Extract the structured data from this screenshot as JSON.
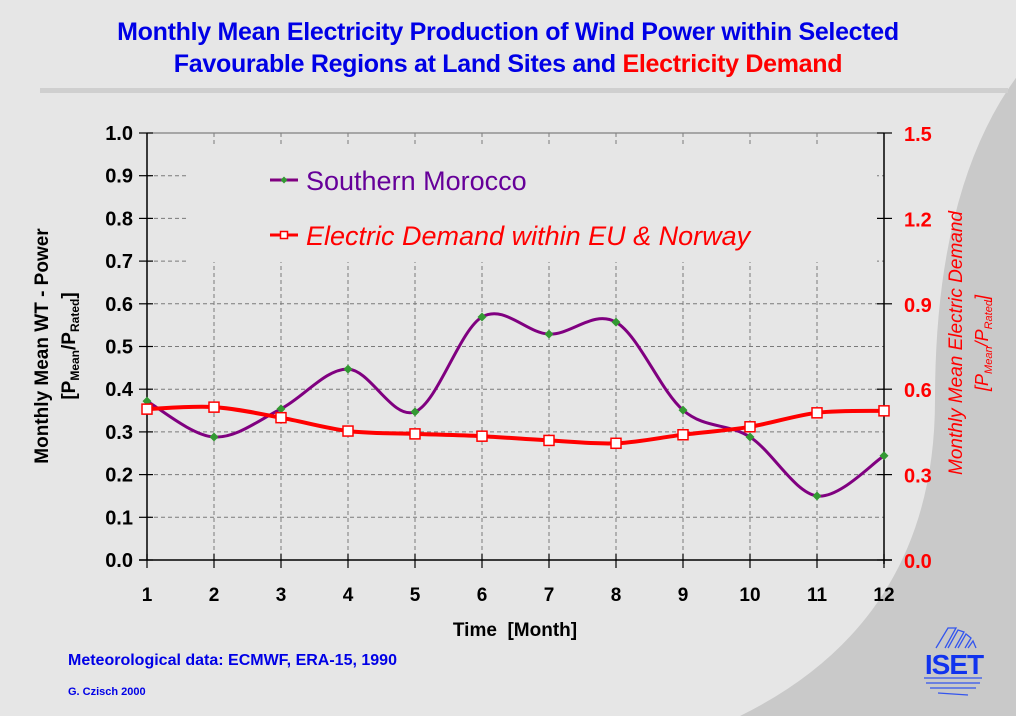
{
  "title": {
    "line1": "Monthly Mean Electricity Production of Wind Power within Selected",
    "line2_blue": "Favourable Regions at Land Sites and ",
    "line2_red": "Electricity Demand"
  },
  "footer": {
    "source": "Meteorological data: ECMWF, ERA-15, 1990",
    "author": "G. Czisch 2000"
  },
  "logo": {
    "text": "ISET"
  },
  "colors": {
    "title_blue": "#0000e6",
    "morocco_line": "#800080",
    "morocco_marker": "#339933",
    "demand_line": "#ff0000",
    "background_light": "#e6e6e6",
    "background_dark": "#c9c9c9"
  },
  "chart_data": {
    "type": "line",
    "xlabel": "Time  [Month]",
    "ylabel_left": "Monthly Mean WT - Power",
    "ylabel_left_unit": {
      "open": "[P",
      "sub1": "Mean",
      "mid": "/P",
      "sub2": "Rated",
      "close": "]"
    },
    "ylabel_right": "Monthly Mean Electric Demand",
    "ylabel_right_unit": {
      "open": "[P",
      "sub1": "Mean",
      "mid": "/P",
      "sub2": "Rated",
      "close": "]"
    },
    "x": [
      1,
      2,
      3,
      4,
      5,
      6,
      7,
      8,
      9,
      10,
      11,
      12
    ],
    "x_ticks": [
      "1",
      "2",
      "3",
      "4",
      "5",
      "6",
      "7",
      "8",
      "9",
      "10",
      "11",
      "12"
    ],
    "xlim": [
      1,
      12
    ],
    "ylim_left": [
      0,
      1.0
    ],
    "ylim_right": [
      0,
      1.5
    ],
    "y_ticks_left": [
      "0.0",
      "0.1",
      "0.2",
      "0.3",
      "0.4",
      "0.5",
      "0.6",
      "0.7",
      "0.8",
      "0.9",
      "1.0"
    ],
    "y_ticks_right": [
      "0.0",
      "0.3",
      "0.6",
      "0.9",
      "1.2",
      "1.5"
    ],
    "grid": true,
    "legend_placement": "top",
    "series": [
      {
        "name": "Southern Morocco",
        "axis": "left",
        "marker": "diamond",
        "smooth": true,
        "values": [
          0.372,
          0.288,
          0.354,
          0.447,
          0.347,
          0.569,
          0.529,
          0.557,
          0.351,
          0.288,
          0.15,
          0.244
        ]
      },
      {
        "name": "Electric Demand within EU & Norway",
        "axis": "right",
        "marker": "square",
        "smooth": true,
        "values": [
          0.53,
          0.537,
          0.5,
          0.453,
          0.443,
          0.435,
          0.42,
          0.41,
          0.44,
          0.468,
          0.517,
          0.524
        ]
      }
    ]
  }
}
